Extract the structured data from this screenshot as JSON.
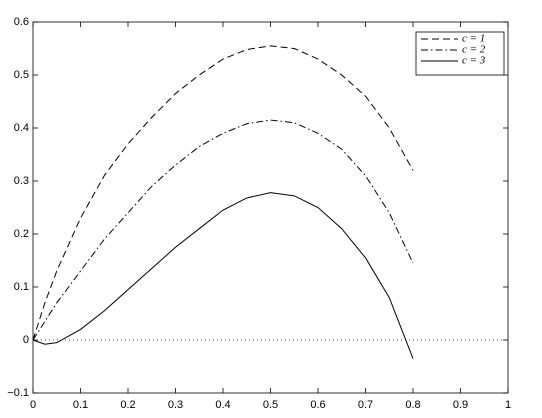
{
  "chart_data": {
    "type": "line",
    "x": [
      0,
      0.025,
      0.05,
      0.1,
      0.15,
      0.2,
      0.25,
      0.3,
      0.35,
      0.4,
      0.45,
      0.5,
      0.55,
      0.6,
      0.65,
      0.7,
      0.75,
      0.8
    ],
    "series": [
      {
        "name": "c = 1",
        "color": "#000000",
        "dash": "dashed",
        "values": [
          0,
          0.07,
          0.13,
          0.23,
          0.31,
          0.37,
          0.42,
          0.465,
          0.5,
          0.53,
          0.548,
          0.555,
          0.55,
          0.53,
          0.5,
          0.46,
          0.4,
          0.32
        ]
      },
      {
        "name": "c = 2",
        "color": "#000000",
        "dash": "dashdot",
        "values": [
          0,
          0.035,
          0.07,
          0.13,
          0.19,
          0.24,
          0.29,
          0.33,
          0.365,
          0.39,
          0.408,
          0.415,
          0.41,
          0.39,
          0.36,
          0.31,
          0.24,
          0.145
        ]
      },
      {
        "name": "c = 3",
        "color": "#000000",
        "dash": "solid",
        "values": [
          0,
          -0.008,
          -0.005,
          0.02,
          0.055,
          0.095,
          0.135,
          0.175,
          0.21,
          0.245,
          0.268,
          0.278,
          0.272,
          0.25,
          0.21,
          0.155,
          0.08,
          -0.035
        ]
      }
    ],
    "hline": 0,
    "xlim": [
      0,
      1
    ],
    "ylim": [
      -0.1,
      0.6
    ],
    "xticks": [
      0,
      0.1,
      0.2,
      0.3,
      0.4,
      0.5,
      0.6,
      0.7,
      0.8,
      0.9,
      1
    ],
    "yticks": [
      {
        "value": -0.1,
        "label": "−0.1"
      },
      0,
      0.1,
      0.2,
      0.3,
      0.4,
      0.5,
      0.6
    ],
    "legend": "upper-right"
  }
}
